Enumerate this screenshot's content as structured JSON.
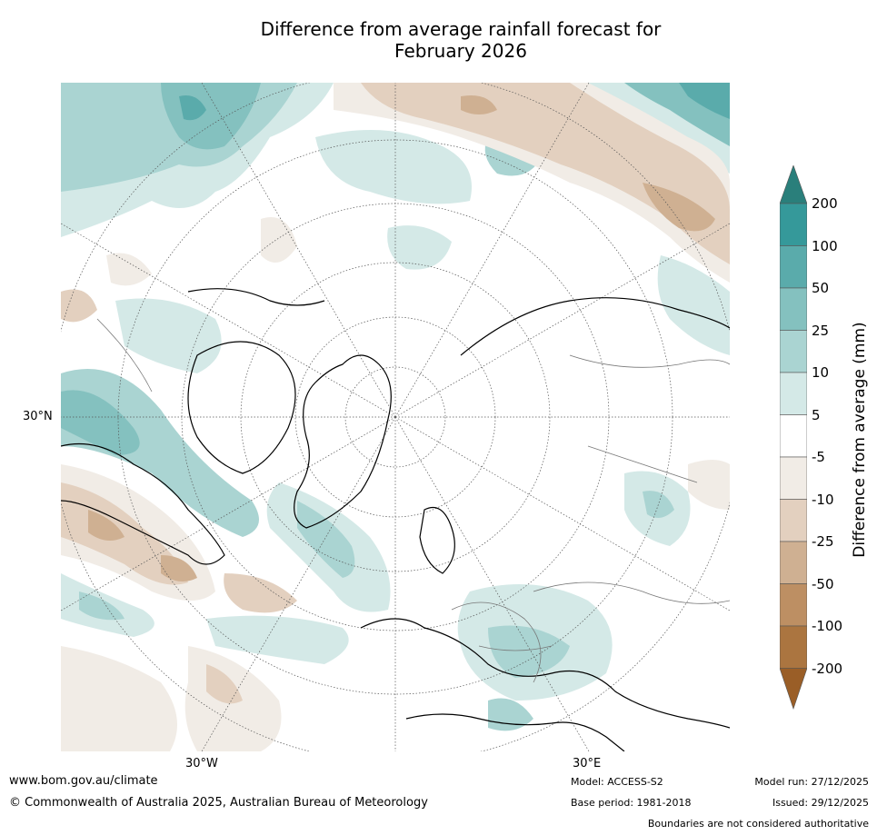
{
  "title_line1": "Difference from average rainfall forecast for",
  "title_line2": "February 2026",
  "axis_labels": {
    "lat_30n": "30°N",
    "lon_30w": "30°W",
    "lon_30e": "30°E"
  },
  "colorbar": {
    "label": "Difference from average (mm)",
    "ticks": [
      "200",
      "100",
      "50",
      "25",
      "10",
      "5",
      "-5",
      "-10",
      "-25",
      "-50",
      "-100",
      "-200"
    ],
    "colors": {
      "gt200": "#2a7f7b",
      "c100_200": "#35999a",
      "c50_100": "#5aabab",
      "c25_50": "#84c1bf",
      "c10_25": "#aad4d2",
      "c5_10": "#d4e9e7",
      "neutral": "#ffffff",
      "m5_10": "#f1ece6",
      "m10_25": "#e3d0bf",
      "m25_50": "#cfb092",
      "m50_100": "#bd8f63",
      "m100_200": "#ab7540",
      "ltm200": "#9a5e27"
    }
  },
  "footer": {
    "url": "www.bom.gov.au/climate",
    "copyright": "© Commonwealth of Australia 2025, Australian Bureau of Meteorology",
    "model": "Model: ACCESS-S2",
    "base_period": "Base period: 1981-2018",
    "model_run": "Model run: 27/12/2025",
    "issued": "Issued: 29/12/2025",
    "disclaimer": "Boundaries are not considered authoritative"
  }
}
